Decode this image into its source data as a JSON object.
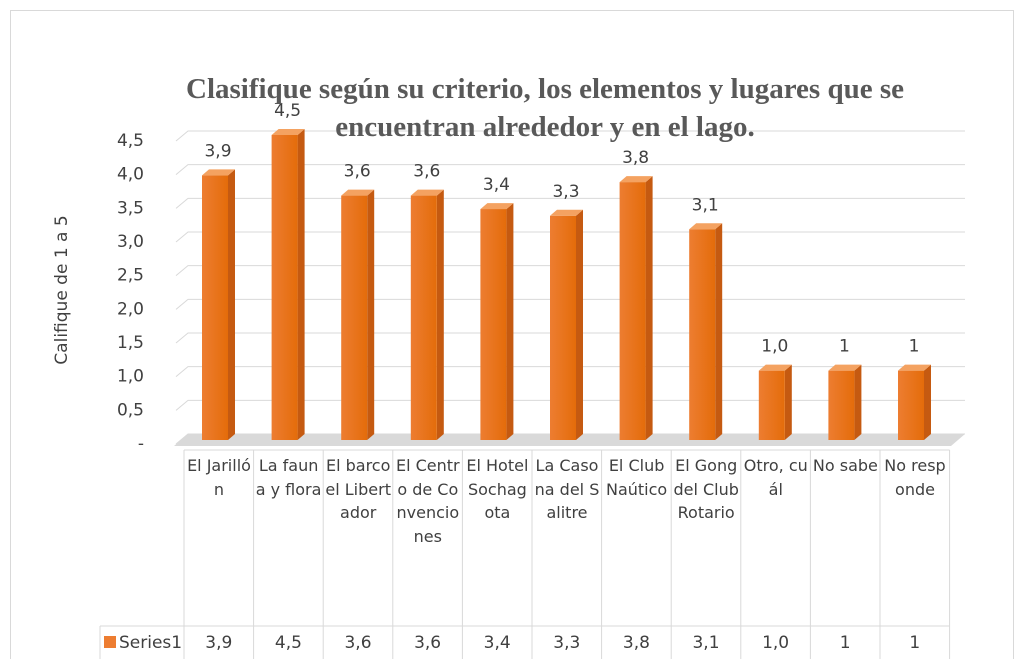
{
  "chart_data": {
    "type": "bar",
    "title": "Clasifique según su criterio, los elementos y lugares que se encuentran alrededor y en el lago.",
    "y_label": "Califique de 1 a 5",
    "categories": [
      "El Jarillón",
      "La fauna y flora",
      "El barco el Libertador",
      "El Centro de Convenciones",
      "El Hotel Sochagota",
      "La Casona del Salitre",
      "El Club Naútico",
      "El Gong del Club Rotario",
      "Otro, cuál",
      "No sabe",
      "No responde"
    ],
    "series": [
      {
        "name": "Series1",
        "color": "#ed7d31",
        "values": [
          3.9,
          4.5,
          3.6,
          3.6,
          3.4,
          3.3,
          3.8,
          3.1,
          1.0,
          1,
          1
        ],
        "value_labels": [
          "3,9",
          "4,5",
          "3,6",
          "3,6",
          "3,4",
          "3,3",
          "3,8",
          "3,1",
          "1,0",
          "1",
          "1"
        ]
      }
    ],
    "ylim": [
      0,
      4.5
    ],
    "yticks": [
      {
        "value": 0,
        "label": "-"
      },
      {
        "value": 0.5,
        "label": "0,5"
      },
      {
        "value": 1,
        "label": "1,0"
      },
      {
        "value": 1.5,
        "label": "1,5"
      },
      {
        "value": 2,
        "label": "2,0"
      },
      {
        "value": 2.5,
        "label": "2,5"
      },
      {
        "value": 3,
        "label": "3,0"
      },
      {
        "value": 3.5,
        "label": "3,5"
      },
      {
        "value": 4,
        "label": "4,0"
      },
      {
        "value": 4.5,
        "label": "4,5"
      }
    ],
    "grid": true,
    "data_table": true
  }
}
